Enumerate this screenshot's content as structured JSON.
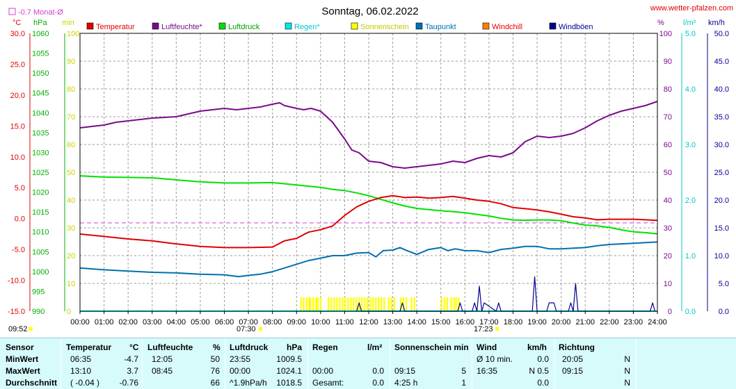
{
  "header": {
    "date_title": "Sonntag, 06.02.2022",
    "site_link": "www.wetter-pfalzen.com",
    "monthly_avg_label": "-0.7 Monat-Ø",
    "time_left": "09:52",
    "sunrise_time": "07:30",
    "sunset_time": "17:23"
  },
  "colors": {
    "temperature": "#e00000",
    "humidity": "#7a0a8c",
    "pressure": "#00e000",
    "rain": "#00e8e8",
    "sunshine": "#ffff00",
    "dewpoint": "#0070b0",
    "windchill": "#ff8000",
    "gust": "#000090",
    "avgline": "#d040d0",
    "table_bg": "#d7fbfb"
  },
  "chart_data": {
    "type": "line",
    "title": "Sonntag, 06.02.2022",
    "x_ticks": [
      "00:00",
      "01:00",
      "02:00",
      "03:00",
      "04:00",
      "05:00",
      "06:00",
      "07:00",
      "08:00",
      "09:00",
      "10:00",
      "11:00",
      "12:00",
      "13:00",
      "14:00",
      "15:00",
      "16:00",
      "17:00",
      "18:00",
      "19:00",
      "20:00",
      "21:00",
      "22:00",
      "23:00",
      "24:00"
    ],
    "axes": {
      "temp": {
        "unit": "°C",
        "ylim": [
          -15,
          30
        ],
        "ticks": [
          "30.0",
          "25.0",
          "20.0",
          "15.0",
          "10.0",
          "5.0",
          "0.0",
          "-5.0",
          "-10.0",
          "-15.0"
        ]
      },
      "pressure": {
        "unit": "hPa",
        "ylim": [
          990,
          1060
        ],
        "ticks": [
          "1060",
          "1055",
          "1050",
          "1045",
          "1040",
          "1035",
          "1030",
          "1025",
          "1020",
          "1015",
          "1010",
          "1005",
          "1000",
          "995",
          "990"
        ]
      },
      "minutes": {
        "unit": "min",
        "ylim": [
          0,
          100
        ],
        "ticks": [
          "100",
          "90",
          "80",
          "70",
          "60",
          "50",
          "40",
          "30",
          "20",
          "10",
          "0"
        ]
      },
      "humidity": {
        "unit": "%",
        "ylim": [
          0,
          100
        ],
        "ticks": [
          "100",
          "90",
          "80",
          "70",
          "60",
          "50",
          "40",
          "30",
          "20",
          "10",
          "0"
        ]
      },
      "rain": {
        "unit": "l/m²",
        "ylim": [
          0,
          5
        ],
        "ticks": [
          "5.0",
          "4.0",
          "3.0",
          "2.0",
          "1.0",
          "0.0"
        ]
      },
      "wind": {
        "unit": "km/h",
        "ylim": [
          0,
          50
        ],
        "ticks": [
          "50.0",
          "45.0",
          "40.0",
          "35.0",
          "30.0",
          "25.0",
          "20.0",
          "15.0",
          "10.0",
          "5.0",
          "0.0"
        ]
      }
    },
    "legend": [
      "Temperatur",
      "Luftfeuchte*",
      "Luftdruck",
      "Regen*",
      "Sonnenschein",
      "Taupunkt",
      "Windchill",
      "Windböen"
    ],
    "monthly_avg_temp": -0.7,
    "series": [
      {
        "name": "Temperatur",
        "axis": "temp",
        "x": [
          0,
          1,
          2,
          3,
          4,
          5,
          6,
          7,
          8,
          8.5,
          9,
          9.5,
          10,
          10.5,
          11,
          11.5,
          12,
          12.5,
          13,
          13.2,
          13.5,
          14,
          14.5,
          15,
          15.5,
          16,
          16.5,
          17,
          17.5,
          18,
          18.5,
          19,
          19.5,
          20,
          20.5,
          21,
          21.5,
          22,
          22.5,
          23,
          23.5,
          24
        ],
        "y": [
          -2.5,
          -2.9,
          -3.3,
          -3.6,
          -4.1,
          -4.5,
          -4.7,
          -4.7,
          -4.6,
          -3.6,
          -3.2,
          -2.2,
          -1.8,
          -1.2,
          0.5,
          1.9,
          2.8,
          3.4,
          3.7,
          3.6,
          3.4,
          3.5,
          3.3,
          3.4,
          3.6,
          3.3,
          3.0,
          2.8,
          2.4,
          1.8,
          1.6,
          1.4,
          1.1,
          0.7,
          0.3,
          0.1,
          -0.2,
          -0.1,
          -0.1,
          -0.1,
          -0.2,
          -0.3
        ]
      },
      {
        "name": "Luftfeuchte*",
        "axis": "humidity",
        "x": [
          0,
          0.5,
          1,
          1.5,
          2,
          3,
          4,
          4.5,
          5,
          5.5,
          6,
          6.5,
          7,
          7.5,
          8,
          8.3,
          8.5,
          9,
          9.3,
          9.6,
          10,
          10.5,
          11,
          11.3,
          11.6,
          12,
          12.5,
          13,
          13.5,
          14,
          14.5,
          15,
          15.5,
          16,
          16.5,
          17,
          17.5,
          18,
          18.5,
          19,
          19.5,
          20,
          20.5,
          21,
          21.5,
          22,
          22.5,
          23,
          23.5,
          24
        ],
        "y": [
          66,
          66.5,
          67,
          68,
          68.5,
          69.5,
          70,
          71,
          72,
          72.5,
          73,
          72.5,
          73,
          73.5,
          74.5,
          75,
          74,
          73,
          72.5,
          73,
          72,
          68,
          62,
          58,
          57,
          54,
          53.5,
          52,
          51.5,
          52,
          52.5,
          53,
          54,
          53.5,
          55,
          56,
          55.5,
          57,
          61,
          63,
          62.5,
          63,
          64,
          66,
          68.5,
          70.5,
          72,
          73,
          74,
          75.5
        ]
      },
      {
        "name": "Luftdruck",
        "axis": "pressure",
        "x": [
          0,
          1,
          2,
          3,
          4,
          5,
          6,
          7,
          8,
          9,
          10,
          10.5,
          11,
          11.5,
          12,
          12.5,
          13,
          13.5,
          14,
          14.5,
          15,
          15.5,
          16,
          16.5,
          17,
          17.5,
          18,
          18.5,
          19,
          19.5,
          20,
          20.5,
          21,
          21.5,
          22,
          22.5,
          23,
          23.5,
          24
        ],
        "y": [
          1024.1,
          1023.8,
          1023.7,
          1023.6,
          1023.1,
          1022.6,
          1022.3,
          1022.3,
          1022.4,
          1021.8,
          1021.2,
          1020.7,
          1020.4,
          1019.8,
          1019.1,
          1018.2,
          1017.3,
          1016.5,
          1015.9,
          1015.6,
          1015.3,
          1015.1,
          1014.8,
          1014.4,
          1014.0,
          1013.4,
          1013.0,
          1012.9,
          1013.0,
          1013.0,
          1012.8,
          1012.2,
          1011.7,
          1011.5,
          1011.1,
          1010.5,
          1010.0,
          1009.8,
          1009.5
        ]
      },
      {
        "name": "Taupunkt",
        "axis": "temp",
        "x": [
          0,
          1,
          2,
          3,
          4,
          5,
          6,
          6.6,
          7,
          7.5,
          8,
          8.5,
          9,
          9.5,
          10,
          10.5,
          11,
          11.5,
          12,
          12.3,
          12.6,
          13,
          13.3,
          13.6,
          14,
          14.5,
          15,
          15.3,
          15.6,
          16,
          16.5,
          17,
          17.5,
          18,
          18.5,
          19,
          19.5,
          20,
          20.5,
          21,
          21.5,
          22,
          22.5,
          23,
          23.5,
          24
        ],
        "y": [
          -8.0,
          -8.3,
          -8.5,
          -8.7,
          -8.8,
          -9.0,
          -9.1,
          -9.4,
          -9.2,
          -9.0,
          -8.6,
          -8.0,
          -7.4,
          -6.8,
          -6.4,
          -6.0,
          -6.0,
          -5.6,
          -5.5,
          -6.2,
          -5.2,
          -5.1,
          -4.7,
          -5.2,
          -5.8,
          -5.0,
          -4.7,
          -5.2,
          -4.9,
          -5.2,
          -5.2,
          -5.5,
          -5.0,
          -4.8,
          -4.5,
          -4.5,
          -4.9,
          -4.9,
          -4.8,
          -4.7,
          -4.4,
          -4.2,
          -4.1,
          -4.0,
          -3.9,
          -3.8
        ]
      },
      {
        "name": "Windböen",
        "axis": "wind",
        "x": [
          11.5,
          11.6,
          11.7,
          13.3,
          13.4,
          13.5,
          15.7,
          15.8,
          15.9,
          16.3,
          16.4,
          16.5,
          16.6,
          16.7,
          16.8,
          17.3,
          17.4,
          17.5,
          18.8,
          18.9,
          19.0,
          19.4,
          19.5,
          19.7,
          19.8,
          20.3,
          20.4,
          20.5,
          20.6,
          20.7,
          20.8,
          23.7,
          23.8,
          23.9
        ],
        "y": [
          0,
          1.5,
          0,
          0,
          1.5,
          0,
          0,
          1.5,
          0,
          0,
          1.5,
          0,
          4.5,
          0,
          1.5,
          0,
          1.5,
          0,
          0,
          6.2,
          0,
          0,
          1.5,
          1.5,
          0,
          0,
          1.5,
          0,
          5.0,
          0,
          0,
          0,
          1.5,
          0
        ]
      },
      {
        "name": "Regen*",
        "axis": "rain",
        "x": [
          0,
          24
        ],
        "y": [
          0,
          0
        ]
      }
    ],
    "sunshine_intervals": [
      [
        9.15,
        9.5
      ],
      [
        9.55,
        9.8
      ],
      [
        9.85,
        10.0
      ],
      [
        10.3,
        12.7
      ],
      [
        12.8,
        13.1
      ],
      [
        13.3,
        13.6
      ],
      [
        13.75,
        13.95
      ],
      [
        15.0,
        15.25
      ],
      [
        15.4,
        15.55
      ],
      [
        15.6,
        15.75
      ]
    ]
  },
  "stats": {
    "headers": [
      {
        "label": "Sensor",
        "unit": ""
      },
      {
        "label": "Temperatur",
        "unit": "°C"
      },
      {
        "label": "Luftfeuchte",
        "unit": "%"
      },
      {
        "label": "Luftdruck",
        "unit": "hPa"
      },
      {
        "label": "Regen",
        "unit": "l/m²"
      },
      {
        "label": "Sonnenschein min",
        "unit": ""
      },
      {
        "label": "Wind",
        "unit": "km/h"
      },
      {
        "label": "Richtung",
        "unit": ""
      }
    ],
    "rows": [
      {
        "label": "MinWert",
        "temp_time": "06:35",
        "temp_val": "-4.7",
        "hum_time": "12:05",
        "hum_val": "50",
        "press_time": "23:55",
        "press_val": "1009.5",
        "rain_time": "",
        "rain_val": "",
        "sun_time": "",
        "sun_val": "",
        "wind_time": "Ø 10 min.",
        "wind_val": "0.0",
        "dir_time": "20:05",
        "dir_val": "N"
      },
      {
        "label": "MaxWert",
        "temp_time": "13:10",
        "temp_val": "3.7",
        "hum_time": "08:45",
        "hum_val": "76",
        "press_time": "00:00",
        "press_val": "1024.1",
        "rain_time": "00:00",
        "rain_val": "0.0",
        "sun_time": "09:15",
        "sun_val": "5",
        "wind_time": "16:35",
        "wind_val": "N 0.5",
        "dir_time": "09:15",
        "dir_val": "N"
      },
      {
        "label": "Durchschnitt",
        "temp_time": "( -0.04 )",
        "temp_val": "-0.76",
        "hum_time": "",
        "hum_val": "66",
        "press_time": "^1.9hPa/h",
        "press_val": "1018.5",
        "rain_time": "Gesamt:",
        "rain_val": "0.0",
        "sun_time": "4:25 h",
        "sun_val": "1",
        "wind_time": "",
        "wind_val": "0.0",
        "dir_time": "",
        "dir_val": "N"
      }
    ]
  }
}
